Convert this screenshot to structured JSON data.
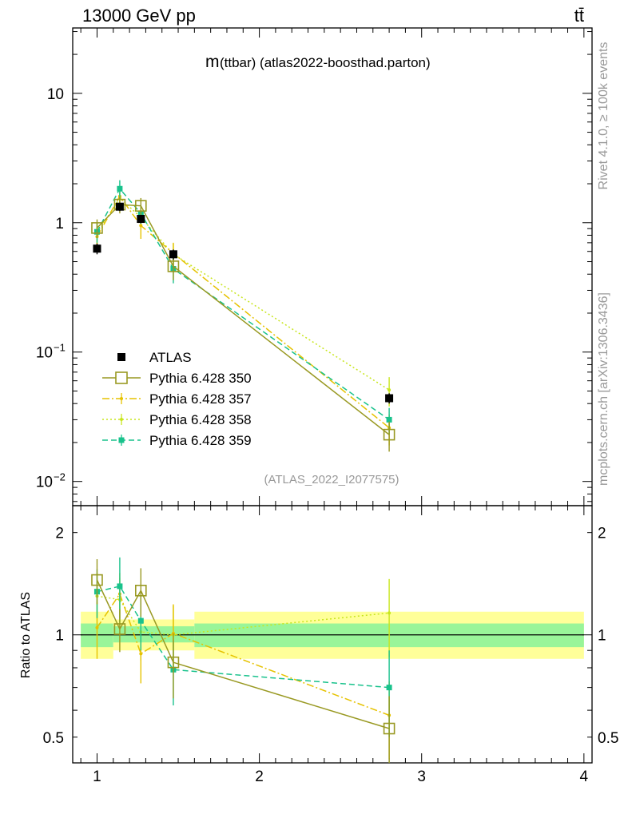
{
  "header": {
    "left": "13000 GeV pp",
    "right": "tt̄"
  },
  "side_labels": {
    "rivet": "Rivet 4.1.0, ≥ 100k events",
    "mcplots": "mcplots.cern.ch [arXiv:1306.3436]"
  },
  "colors": {
    "atlas": "#000000",
    "p350": "#999922",
    "p357": "#e6c200",
    "p358": "#c8e61e",
    "p359": "#19c28c",
    "band_inner": "#99f599",
    "band_outer": "#ffff99"
  },
  "chart_data": [
    {
      "type": "scatter",
      "title": "m(ttbar) (atlas2022-boosthad.parton)",
      "title_main": "m",
      "title_rest": "(ttbar) (atlas2022-boosthad.parton)",
      "watermark": "(ATLAS_2022_I2077575)",
      "xlabel": "",
      "ylabel": "",
      "yscale": "log",
      "xlim": [
        0.85,
        4.05
      ],
      "ylim": [
        0.0065,
        32
      ],
      "yticks": [
        {
          "value": 10,
          "label": "10"
        },
        {
          "value": 1,
          "label": "1"
        },
        {
          "value": 0.1,
          "label": "10",
          "exp": "−1"
        },
        {
          "value": 0.01,
          "label": "10",
          "exp": "−2"
        }
      ],
      "xticks": [
        1,
        2,
        3,
        4
      ],
      "bins": [
        [
          0.9,
          1.08
        ],
        [
          1.08,
          1.21
        ],
        [
          1.21,
          1.34
        ],
        [
          1.34,
          1.6
        ],
        [
          1.6,
          4.0
        ]
      ],
      "x": [
        1.0,
        1.14,
        1.27,
        1.47,
        2.8
      ],
      "series": [
        {
          "name": "ATLAS",
          "key": "atlas",
          "style": "data",
          "values": [
            0.63,
            1.33,
            1.07,
            0.57,
            0.044
          ],
          "err_lo": [
            0.06,
            0.1,
            0.08,
            0.05,
            0.004
          ],
          "err_hi": [
            0.06,
            0.1,
            0.08,
            0.05,
            0.004
          ]
        },
        {
          "name": "Pythia 6.428 350",
          "key": "p350",
          "style": "solid",
          "values": [
            0.91,
            1.38,
            1.35,
            0.46,
            0.023
          ],
          "err_lo": [
            0.15,
            0.2,
            0.2,
            0.1,
            0.006
          ],
          "err_hi": [
            0.15,
            0.2,
            0.2,
            0.1,
            0.006
          ]
        },
        {
          "name": "Pythia 6.428 357",
          "key": "p357",
          "style": "dashdot",
          "values": [
            0.78,
            1.6,
            0.95,
            0.58,
            0.026
          ],
          "err_lo": [
            0.15,
            0.2,
            0.2,
            0.12,
            0.007
          ],
          "err_hi": [
            0.15,
            0.2,
            0.2,
            0.12,
            0.007
          ]
        },
        {
          "name": "Pythia 6.428 358",
          "key": "p358",
          "style": "dotted",
          "values": [
            0.83,
            1.55,
            1.1,
            0.57,
            0.051
          ],
          "err_lo": [
            0.15,
            0.2,
            0.2,
            0.12,
            0.013
          ],
          "err_hi": [
            0.15,
            0.2,
            0.2,
            0.12,
            0.013
          ]
        },
        {
          "name": "Pythia 6.428 359",
          "key": "p359",
          "style": "dashed",
          "values": [
            0.85,
            1.83,
            1.18,
            0.44,
            0.03
          ],
          "err_lo": [
            0.15,
            0.3,
            0.2,
            0.1,
            0.007
          ],
          "err_hi": [
            0.15,
            0.3,
            0.2,
            0.1,
            0.007
          ]
        }
      ]
    },
    {
      "type": "scatter",
      "title": "",
      "ylabel": "Ratio to ATLAS",
      "yscale": "log",
      "xlim": [
        0.85,
        4.05
      ],
      "ylim": [
        0.42,
        2.4
      ],
      "yticks": [
        {
          "value": 2,
          "label": "2"
        },
        {
          "value": 1,
          "label": "1"
        },
        {
          "value": 0.5,
          "label": "0.5"
        }
      ],
      "xticks": [
        1,
        2,
        3,
        4
      ],
      "bands": [
        {
          "x0": 0.9,
          "x1": 1.1,
          "inner": [
            0.92,
            1.08
          ],
          "outer": [
            0.85,
            1.17
          ]
        },
        {
          "x0": 1.1,
          "x1": 1.6,
          "inner": [
            0.95,
            1.06
          ],
          "outer": [
            0.9,
            1.11
          ]
        },
        {
          "x0": 1.6,
          "x1": 4.0,
          "inner": [
            0.92,
            1.08
          ],
          "outer": [
            0.85,
            1.17
          ]
        }
      ],
      "x": [
        1.0,
        1.14,
        1.27,
        1.47,
        2.8
      ],
      "series": [
        {
          "name": "Pythia 6.428 350",
          "key": "p350",
          "style": "solid",
          "values": [
            1.45,
            1.04,
            1.35,
            0.83,
            0.53
          ],
          "err_lo": [
            0.22,
            0.15,
            0.22,
            0.18,
            0.13
          ],
          "err_hi": [
            0.22,
            0.15,
            0.22,
            0.18,
            0.13
          ]
        },
        {
          "name": "Pythia 6.428 357",
          "key": "p357",
          "style": "dashdot",
          "values": [
            1.05,
            1.32,
            0.88,
            1.01,
            0.58
          ],
          "err_lo": [
            0.2,
            0.2,
            0.16,
            0.22,
            0.15
          ],
          "err_hi": [
            0.2,
            0.2,
            0.16,
            0.22,
            0.15
          ]
        },
        {
          "name": "Pythia 6.428 358",
          "key": "p358",
          "style": "dotted",
          "values": [
            1.3,
            1.27,
            1.02,
            1.0,
            1.16
          ],
          "err_lo": [
            0.22,
            0.2,
            0.18,
            0.22,
            0.3
          ],
          "err_hi": [
            0.22,
            0.2,
            0.18,
            0.22,
            0.3
          ]
        },
        {
          "name": "Pythia 6.428 359",
          "key": "p359",
          "style": "dashed",
          "values": [
            1.34,
            1.39,
            1.1,
            0.79,
            0.7
          ],
          "err_lo": [
            0.22,
            0.3,
            0.2,
            0.17,
            0.2
          ],
          "err_hi": [
            0.22,
            0.3,
            0.2,
            0.17,
            0.2
          ]
        }
      ]
    }
  ]
}
